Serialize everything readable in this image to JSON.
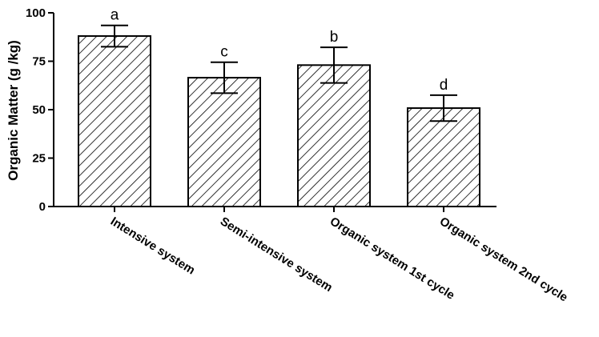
{
  "chart_data": {
    "type": "bar",
    "title": "",
    "xlabel": "",
    "ylabel": "Organic Matter (g /kg)",
    "ylim": [
      0,
      100
    ],
    "yticks": [
      0,
      25,
      50,
      75,
      100
    ],
    "grid": false,
    "legend": "none",
    "bar_fill": "diagonal-hatch",
    "bar_color": "#000000",
    "categories": [
      "Intensive system",
      "Semi-intensive system",
      "Organic system 1st cycle",
      "Organic system 2nd cycle"
    ],
    "values": [
      88,
      66.5,
      73,
      50.8
    ],
    "errors": [
      5.5,
      8,
      9.2,
      6.7
    ],
    "significance_labels": [
      "a",
      "c",
      "b",
      "d"
    ]
  }
}
